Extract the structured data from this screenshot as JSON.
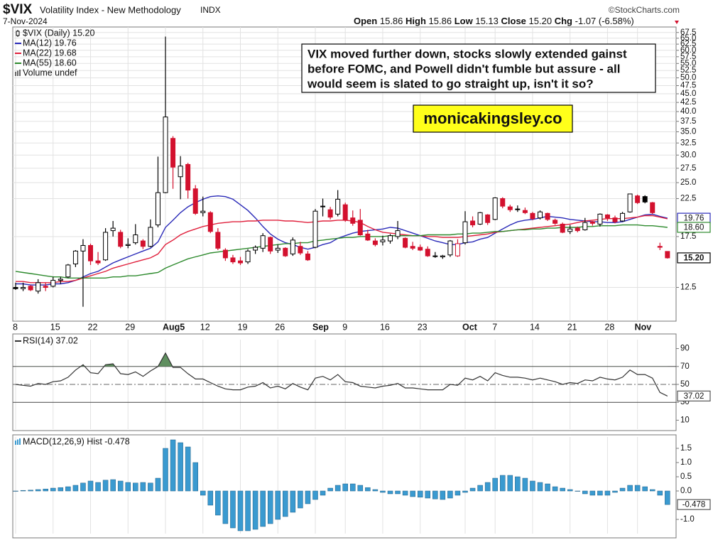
{
  "header": {
    "symbol": "$VIX",
    "name": "Volatility Index - New Methodology",
    "exchange": "INDX",
    "date": "7-Nov-2024",
    "source": "©StockCharts.com",
    "quote": [
      {
        "label": "Open",
        "value": "15.86"
      },
      {
        "label": "High",
        "value": "15.86"
      },
      {
        "label": "Low",
        "value": "15.13"
      },
      {
        "label": "Close",
        "value": "15.20"
      },
      {
        "label": "Chg",
        "value": "-1.07 (-6.58%)"
      }
    ]
  },
  "chart_data": [
    {
      "type": "candlestick",
      "name": "$VIX (Daily) 15.20",
      "last_label": "15.20",
      "log_scale": true,
      "grid": true,
      "up_color": "#000000",
      "down_color": "#d3112e",
      "categories": [
        "8",
        null,
        null,
        null,
        null,
        "15",
        null,
        null,
        null,
        null,
        "22",
        null,
        null,
        null,
        null,
        "29",
        null,
        null,
        null,
        null,
        "Aug5",
        null,
        null,
        null,
        null,
        "12",
        null,
        null,
        null,
        null,
        "19",
        null,
        null,
        null,
        null,
        "26",
        null,
        null,
        null,
        null,
        "Sep",
        null,
        null,
        null,
        "9",
        null,
        null,
        null,
        null,
        "16",
        null,
        null,
        null,
        null,
        "23",
        null,
        null,
        null,
        null,
        null,
        "Oct",
        null,
        null,
        null,
        "7",
        null,
        null,
        null,
        null,
        "14",
        null,
        null,
        null,
        null,
        "21",
        null,
        null,
        null,
        null,
        "28",
        null,
        null,
        null,
        "Nov",
        null,
        null,
        null,
        null
      ],
      "open": [
        12.5,
        12.4,
        12.6,
        12.2,
        12.6,
        12.6,
        13.1,
        13.4,
        14.6,
        15.9,
        16.5,
        14.9,
        15.0,
        18.2,
        18.0,
        16.5,
        16.8,
        17.0,
        16.4,
        18.9,
        23.4,
        33.5,
        26.0,
        28.2,
        24.0,
        20.5,
        20.5,
        18.0,
        16.0,
        15.2,
        14.9,
        14.8,
        16.0,
        16.2,
        17.4,
        16.0,
        16.2,
        15.6,
        16.4,
        15.6,
        16.3,
        21.4,
        20.9,
        20.3,
        21.6,
        19.8,
        19.5,
        17.8,
        17.0,
        16.9,
        17.0,
        17.5,
        17.3,
        16.4,
        16.3,
        16.1,
        15.4,
        15.3,
        15.5,
        15.4,
        16.8,
        19.4,
        19.0,
        20.2,
        19.6,
        22.5,
        21.3,
        21.0,
        20.8,
        20.4,
        19.8,
        20.4,
        19.5,
        19.0,
        18.1,
        18.5,
        18.3,
        19.3,
        19.0,
        20.2,
        19.8,
        19.4,
        20.6,
        22.9,
        22.8,
        21.9,
        16.4,
        15.86
      ],
      "high": [
        12.9,
        12.9,
        12.7,
        13.2,
        12.9,
        13.4,
        13.4,
        14.6,
        16.0,
        17.2,
        16.7,
        15.8,
        18.5,
        19.4,
        18.3,
        17.3,
        19.0,
        17.2,
        19.6,
        29.7,
        65.7,
        34.0,
        29.8,
        28.5,
        24.6,
        22.8,
        20.7,
        18.5,
        16.2,
        15.5,
        15.3,
        16.1,
        16.5,
        17.9,
        17.5,
        16.6,
        16.3,
        17.4,
        16.9,
        15.9,
        21.0,
        22.5,
        21.3,
        23.8,
        21.9,
        20.8,
        21.0,
        18.3,
        17.3,
        17.6,
        17.8,
        19.4,
        17.4,
        16.9,
        16.6,
        16.4,
        15.8,
        15.5,
        17.1,
        17.2,
        20.7,
        20.0,
        20.6,
        20.3,
        22.7,
        22.7,
        21.6,
        21.5,
        21.2,
        20.6,
        20.8,
        20.5,
        19.7,
        19.2,
        18.9,
        18.7,
        19.8,
        19.4,
        20.4,
        20.3,
        20.1,
        20.6,
        23.2,
        23.1,
        23.0,
        22.0,
        16.8,
        15.86
      ],
      "low": [
        12.3,
        12.2,
        12.2,
        12.0,
        12.2,
        12.5,
        12.8,
        13.3,
        14.3,
        11.0,
        14.5,
        14.5,
        14.9,
        17.5,
        16.2,
        16.2,
        16.6,
        16.1,
        16.3,
        18.6,
        23.3,
        24.0,
        22.4,
        22.5,
        20.2,
        20.0,
        17.9,
        16.0,
        14.9,
        14.6,
        14.5,
        14.6,
        15.6,
        15.8,
        15.6,
        15.7,
        15.3,
        15.4,
        15.5,
        14.9,
        16.2,
        20.0,
        19.6,
        20.0,
        19.3,
        18.8,
        17.6,
        17.0,
        16.4,
        16.5,
        16.7,
        17.2,
        16.2,
        16.0,
        15.9,
        15.3,
        15.2,
        15.1,
        15.3,
        15.3,
        16.6,
        18.6,
        18.9,
        18.9,
        19.5,
        21.1,
        20.6,
        20.6,
        20.3,
        19.5,
        19.6,
        19.4,
        18.9,
        17.9,
        17.8,
        18.0,
        18.2,
        18.8,
        18.7,
        19.4,
        19.1,
        19.3,
        20.5,
        21.7,
        21.8,
        20.3,
        16.0,
        15.13
      ],
      "close": [
        12.4,
        12.5,
        12.3,
        12.9,
        12.5,
        13.1,
        13.2,
        14.5,
        15.9,
        16.5,
        14.9,
        14.7,
        18.0,
        18.5,
        16.4,
        16.6,
        17.7,
        16.4,
        18.6,
        23.4,
        38.6,
        27.7,
        27.9,
        23.8,
        20.4,
        20.7,
        18.1,
        16.2,
        15.2,
        14.8,
        14.7,
        15.9,
        16.3,
        17.6,
        15.9,
        16.2,
        15.4,
        17.1,
        15.7,
        15.0,
        20.7,
        21.3,
        19.9,
        22.4,
        19.5,
        19.1,
        17.7,
        17.1,
        16.6,
        17.1,
        17.6,
        18.2,
        16.3,
        16.2,
        16.0,
        15.4,
        15.4,
        15.4,
        17.0,
        16.7,
        19.3,
        18.9,
        20.5,
        19.2,
        22.6,
        21.4,
        20.9,
        20.9,
        20.5,
        19.7,
        20.6,
        19.6,
        19.1,
        18.0,
        18.4,
        18.2,
        19.2,
        19.1,
        20.3,
        19.8,
        19.3,
        20.4,
        23.2,
        21.9,
        22.0,
        20.5,
        16.3,
        15.2
      ],
      "series": [
        {
          "name": "MA(12) 19.76",
          "color": "#2a2ab8",
          "last_label": "19.76",
          "values": [
            12.8,
            12.8,
            12.7,
            12.7,
            12.7,
            12.8,
            12.8,
            12.9,
            13.1,
            13.4,
            13.7,
            13.9,
            14.3,
            14.7,
            15.0,
            15.3,
            15.6,
            15.9,
            16.2,
            16.9,
            18.6,
            19.5,
            20.5,
            21.3,
            21.9,
            22.4,
            22.8,
            22.9,
            22.8,
            22.4,
            21.6,
            20.8,
            19.8,
            18.7,
            17.8,
            17.2,
            16.8,
            16.6,
            16.3,
            16.1,
            16.3,
            16.6,
            16.8,
            17.3,
            17.6,
            17.9,
            18.1,
            18.2,
            18.3,
            18.4,
            18.6,
            18.5,
            18.2,
            17.9,
            17.6,
            17.3,
            17.0,
            16.8,
            16.6,
            16.6,
            16.8,
            16.9,
            17.2,
            17.4,
            17.9,
            18.4,
            18.9,
            19.3,
            19.5,
            19.6,
            19.8,
            20.0,
            19.9,
            19.8,
            19.6,
            19.5,
            19.4,
            19.3,
            19.3,
            19.2,
            19.2,
            19.3,
            19.6,
            19.9,
            20.2,
            20.3,
            20.0,
            19.76
          ]
        },
        {
          "name": "MA(22) 19.68",
          "color": "#e0203c",
          "values": [
            13.0,
            13.0,
            12.9,
            12.9,
            12.9,
            12.9,
            13.0,
            13.0,
            13.1,
            13.3,
            13.5,
            13.7,
            13.9,
            14.2,
            14.4,
            14.6,
            14.8,
            15.0,
            15.2,
            15.6,
            16.6,
            17.1,
            17.7,
            18.1,
            18.4,
            18.7,
            18.9,
            19.1,
            19.2,
            19.3,
            19.3,
            19.4,
            19.4,
            19.5,
            19.5,
            19.5,
            19.4,
            19.4,
            19.3,
            19.2,
            19.3,
            19.4,
            19.4,
            19.5,
            19.5,
            19.4,
            19.2,
            18.7,
            18.3,
            18.0,
            17.9,
            17.8,
            17.7,
            17.6,
            17.6,
            17.5,
            17.5,
            17.4,
            17.4,
            17.4,
            17.5,
            17.6,
            17.7,
            17.8,
            18.0,
            18.1,
            18.2,
            18.3,
            18.4,
            18.5,
            18.6,
            18.7,
            18.8,
            18.9,
            19.0,
            19.2,
            19.4,
            19.5,
            19.6,
            19.7,
            19.7,
            19.7,
            19.8,
            19.9,
            20.1,
            20.1,
            19.9,
            19.68
          ]
        },
        {
          "name": "MA(55) 18.60",
          "color": "#2d8a2d",
          "last_label": "18.60",
          "values": [
            13.9,
            13.8,
            13.7,
            13.6,
            13.5,
            13.4,
            13.4,
            13.3,
            13.3,
            13.3,
            13.3,
            13.3,
            13.3,
            13.4,
            13.4,
            13.5,
            13.5,
            13.6,
            13.7,
            13.8,
            14.2,
            14.5,
            14.8,
            15.1,
            15.3,
            15.5,
            15.7,
            15.8,
            15.9,
            16.0,
            16.1,
            16.2,
            16.3,
            16.4,
            16.5,
            16.6,
            16.7,
            16.7,
            16.8,
            16.8,
            17.0,
            17.1,
            17.2,
            17.3,
            17.4,
            17.4,
            17.5,
            17.5,
            17.5,
            17.5,
            17.6,
            17.6,
            17.6,
            17.6,
            17.6,
            17.7,
            17.7,
            17.7,
            17.7,
            17.8,
            17.8,
            17.9,
            17.9,
            18.0,
            18.1,
            18.1,
            18.2,
            18.3,
            18.3,
            18.4,
            18.4,
            18.5,
            18.5,
            18.6,
            18.6,
            18.6,
            18.7,
            18.7,
            18.8,
            18.8,
            18.8,
            18.9,
            18.9,
            18.9,
            18.8,
            18.8,
            18.7,
            18.6
          ]
        }
      ],
      "legend_extra": "Volume undef",
      "ylim": [
        10,
        70
      ],
      "yticks": [
        12.5,
        17.5,
        22.5,
        {
          "value": 25,
          "label": "25.0"
        },
        27.5,
        {
          "value": 30,
          "label": "30.0"
        },
        32.5,
        {
          "value": 35,
          "label": "35.0"
        },
        37.5,
        {
          "value": 40,
          "label": "40.0"
        },
        42.5,
        {
          "value": 45,
          "label": "45.0"
        },
        47.5,
        {
          "value": 50,
          "label": "50.0"
        },
        52.5,
        {
          "value": 55,
          "label": "55.0"
        },
        57.5,
        {
          "value": 60,
          "label": "60.0"
        },
        62.5,
        {
          "value": 65,
          "label": "65.0"
        },
        67.5
      ],
      "annotations": [
        {
          "lines": [
            "VIX moved further down, stocks slowly extended gainst",
            "before FOMC, and Powell didn't fumble but assure - all",
            "would seem is slated to go straight up, isn't it so?"
          ]
        },
        {
          "text": "monicakingsley.co"
        }
      ]
    },
    {
      "type": "line",
      "name": "RSI(14) 37.02",
      "last_label": "37.02",
      "color": "#333333",
      "fill_color": "#5f8f5f",
      "values": [
        50,
        49,
        48,
        51,
        50,
        53,
        54,
        58,
        66,
        72,
        63,
        62,
        72,
        73,
        62,
        61,
        64,
        59,
        65,
        70,
        85,
        69,
        69,
        62,
        56,
        56,
        52,
        48,
        45,
        44,
        44,
        47,
        48,
        52,
        46,
        48,
        45,
        51,
        47,
        44,
        57,
        59,
        55,
        61,
        53,
        52,
        48,
        47,
        46,
        48,
        49,
        51,
        46,
        46,
        45,
        44,
        44,
        44,
        50,
        49,
        57,
        55,
        59,
        54,
        63,
        60,
        58,
        58,
        57,
        55,
        57,
        55,
        53,
        50,
        52,
        51,
        55,
        54,
        58,
        56,
        55,
        58,
        66,
        61,
        61,
        57,
        41,
        37.02
      ],
      "ylim": [
        0,
        100
      ],
      "yticks": [
        10,
        30,
        50,
        70,
        90
      ],
      "levels": [
        30,
        70
      ],
      "midline": 50
    },
    {
      "type": "bar",
      "name": "MACD(12,26,9) Hist -0.478",
      "last_label": "-0.478",
      "color": "#3a9ad0",
      "values": [
        0.0,
        0.02,
        0.03,
        0.05,
        0.07,
        0.1,
        0.12,
        0.15,
        0.2,
        0.28,
        0.35,
        0.3,
        0.38,
        0.4,
        0.35,
        0.3,
        0.28,
        0.3,
        0.28,
        0.45,
        1.5,
        1.8,
        1.7,
        1.55,
        1.0,
        -0.15,
        -0.5,
        -0.85,
        -1.15,
        -1.3,
        -1.4,
        -1.4,
        -1.35,
        -1.25,
        -1.15,
        -1.0,
        -0.9,
        -0.75,
        -0.6,
        -0.45,
        -0.3,
        -0.15,
        0.1,
        0.2,
        0.25,
        0.25,
        0.2,
        0.12,
        0.05,
        -0.05,
        -0.1,
        -0.1,
        -0.15,
        -0.2,
        -0.22,
        -0.25,
        -0.28,
        -0.3,
        -0.25,
        -0.15,
        -0.05,
        0.1,
        0.2,
        0.3,
        0.45,
        0.55,
        0.55,
        0.5,
        0.45,
        0.35,
        0.3,
        0.25,
        0.15,
        0.1,
        0.05,
        0.0,
        -0.1,
        -0.15,
        -0.15,
        -0.15,
        -0.05,
        0.1,
        0.2,
        0.2,
        0.15,
        0.05,
        -0.15,
        -0.478
      ],
      "ylim": [
        -1.5,
        1.9
      ],
      "yticks": [
        1.5,
        {
          "value": 1,
          "label": "1.0"
        },
        0.5,
        {
          "value": 0,
          "label": "0.0"
        },
        {
          "value": -1,
          "label": "-1.0"
        }
      ]
    }
  ]
}
